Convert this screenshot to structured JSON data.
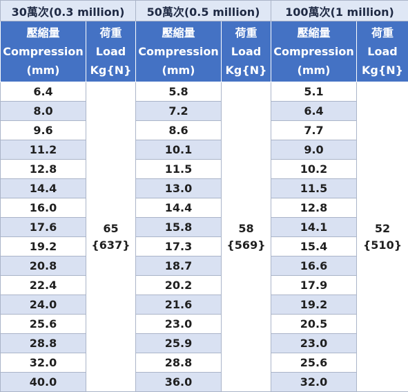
{
  "groups": [
    {
      "title": "30萬次(0.3 million)",
      "load": "65",
      "load_n": "{637}"
    },
    {
      "title": "50萬次(0.5 million)",
      "load": "58",
      "load_n": "{569}"
    },
    {
      "title": "100萬次(1 million)",
      "load": "52",
      "load_n": "{510}"
    }
  ],
  "headers": {
    "compression_cn": "壓縮量",
    "compression_en": "Compression",
    "compression_unit": "(mm)",
    "load_cn": "荷重",
    "load_en": "Load",
    "load_unit": "Kg{N}"
  },
  "rows": [
    [
      "6.4",
      "5.8",
      "5.1"
    ],
    [
      "8.0",
      "7.2",
      "6.4"
    ],
    [
      "9.6",
      "8.6",
      "7.7"
    ],
    [
      "11.2",
      "10.1",
      "9.0"
    ],
    [
      "12.8",
      "11.5",
      "10.2"
    ],
    [
      "14.4",
      "13.0",
      "11.5"
    ],
    [
      "16.0",
      "14.4",
      "12.8"
    ],
    [
      "17.6",
      "15.8",
      "14.1"
    ],
    [
      "19.2",
      "17.3",
      "15.4"
    ],
    [
      "20.8",
      "18.7",
      "16.6"
    ],
    [
      "22.4",
      "20.2",
      "17.9"
    ],
    [
      "24.0",
      "21.6",
      "19.2"
    ],
    [
      "25.6",
      "23.0",
      "20.5"
    ],
    [
      "28.8",
      "25.9",
      "23.0"
    ],
    [
      "32.0",
      "28.8",
      "25.6"
    ],
    [
      "40.0",
      "36.0",
      "32.0"
    ]
  ]
}
